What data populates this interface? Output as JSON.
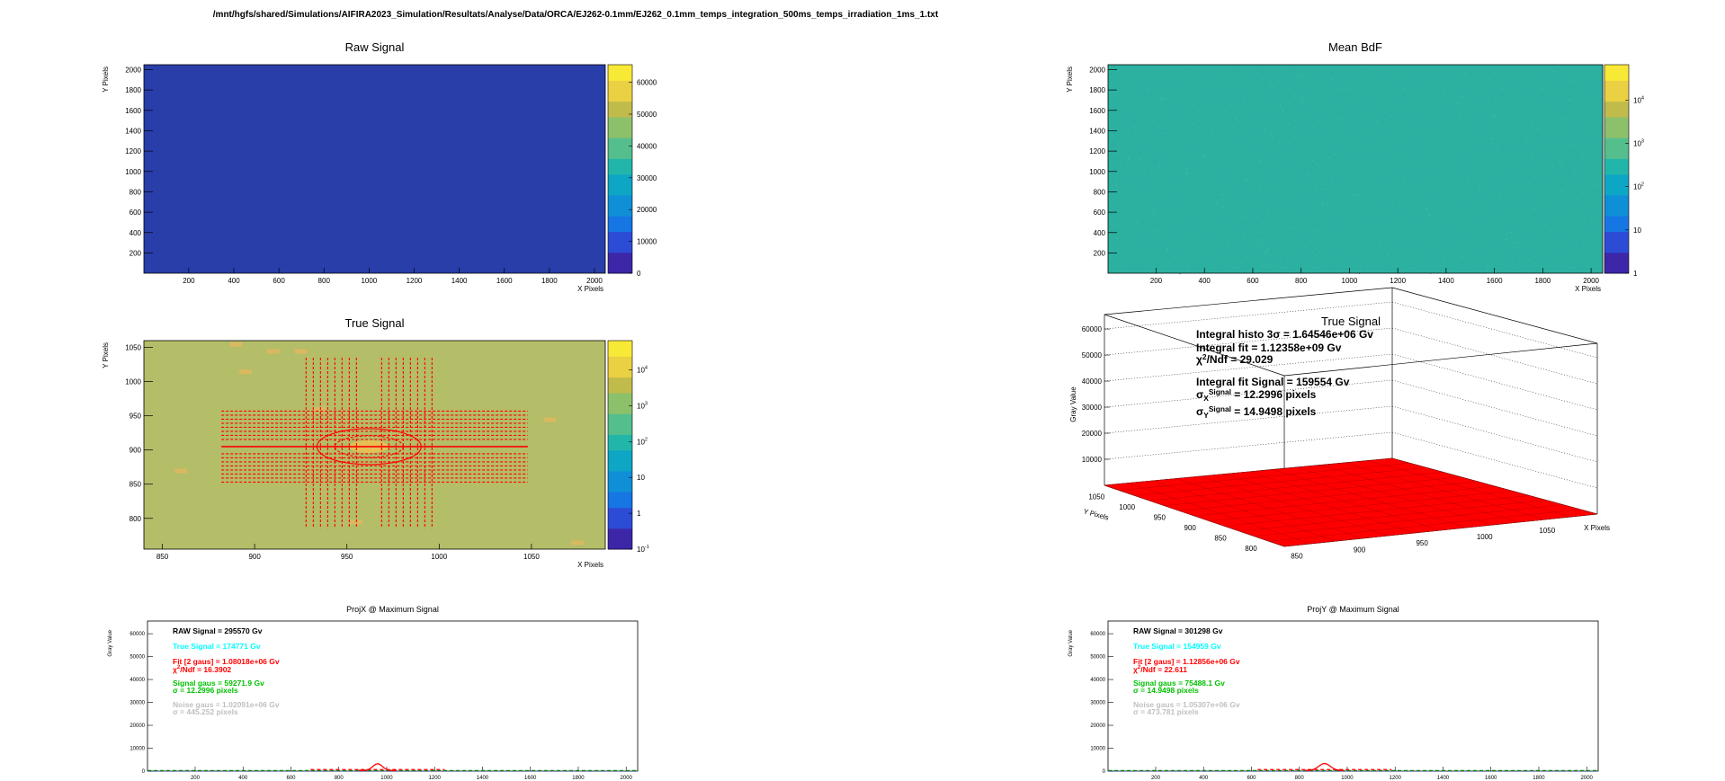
{
  "file_title": "/mnt/hgfs/shared/Simulations/AIFIRA2023_Simulation/Resultats/Analyse/Data/ORCA/EJ262-0.1mm/EJ262_0.1mm_temps_integration_500ms_temps_irradiation_1ms_1.txt",
  "colors": {
    "raw_fill": "#2a3eaa",
    "bdf_fill": "#2cb1a1",
    "true_fill": "#b4bd68",
    "contour": "#ff0000",
    "surface": "#ff0000",
    "true_signal_text": "#00ffff",
    "fit_text": "#ff0000",
    "gaus_text": "#00c000",
    "noise_text": "#c0c0c0"
  },
  "chart_data": [
    {
      "id": "raw_signal",
      "type": "heatmap",
      "title": "Raw Signal",
      "xlabel": "X Pixels",
      "ylabel": "Y Pixels",
      "xlim": [
        1,
        2048
      ],
      "ylim": [
        1,
        2048
      ],
      "x_ticks": [
        200,
        400,
        600,
        800,
        1000,
        1200,
        1400,
        1600,
        1800,
        2000
      ],
      "y_ticks": [
        200,
        400,
        600,
        800,
        1000,
        1200,
        1400,
        1600,
        1800,
        2000
      ],
      "z_scale": "linear",
      "z_range": [
        0,
        65535
      ],
      "z_ticks": [
        "0",
        "10000",
        "20000",
        "30000",
        "40000",
        "50000",
        "60000"
      ],
      "fill_value": "uniform low"
    },
    {
      "id": "mean_bdf",
      "type": "heatmap",
      "title": "Mean BdF",
      "xlabel": "X Pixels",
      "ylabel": "Y Pixels",
      "xlim": [
        1,
        2048
      ],
      "ylim": [
        1,
        2048
      ],
      "x_ticks": [
        200,
        400,
        600,
        800,
        1000,
        1200,
        1400,
        1600,
        1800,
        2000
      ],
      "y_ticks": [
        200,
        400,
        600,
        800,
        1000,
        1200,
        1400,
        1600,
        1800,
        2000
      ],
      "z_scale": "log",
      "z_range": [
        1,
        65535
      ],
      "z_ticks": [
        "1",
        "10",
        "10²",
        "10³",
        "10⁴"
      ],
      "fill_value": "noise ~ 10³"
    },
    {
      "id": "true_signal_2d",
      "type": "heatmap",
      "title": "True Signal",
      "xlabel": "X Pixels",
      "ylabel": "Y Pixels",
      "xlim": [
        840,
        1090
      ],
      "ylim": [
        755,
        1060
      ],
      "x_ticks": [
        850,
        900,
        950,
        1000,
        1050
      ],
      "y_ticks": [
        800,
        850,
        900,
        950,
        1000,
        1050
      ],
      "z_scale": "log",
      "z_range": [
        0.1,
        65535
      ],
      "z_ticks": [
        "10⁻¹",
        "1",
        "10",
        "10²",
        "10³",
        "10⁴"
      ],
      "peak": {
        "x": 962,
        "y": 905
      },
      "sigma": {
        "x": 12.2996,
        "y": 14.9498
      }
    },
    {
      "id": "true_signal_3d",
      "type": "surface",
      "title": "True Signal",
      "xlabel": "X Pixels",
      "ylabel": "Y Pixels",
      "zlabel": "Gray Value",
      "x_ticks": [
        850,
        900,
        950,
        1000,
        1050
      ],
      "y_ticks": [
        800,
        850,
        900,
        950,
        1000,
        1050
      ],
      "z_ticks": [
        10000,
        20000,
        30000,
        40000,
        50000,
        60000
      ],
      "zlim": [
        0,
        65535
      ],
      "stats": [
        "Integral histo 3σ = 1.64546e+06 Gv",
        "Integral fit = 1.12358e+09 Gv",
        "χ²/Ndf = 29.029",
        "Integral fit Signal = 159554 Gv",
        "σX^Signal = 12.2996 pixels",
        "σY^Signal = 14.9498 pixels"
      ]
    },
    {
      "id": "projx",
      "type": "line",
      "title": "ProjX @ Maximum Signal",
      "xlabel": "X Pixels",
      "ylabel": "Gray Value",
      "xlim": [
        1,
        2048
      ],
      "ylim": [
        0,
        65535
      ],
      "x_ticks": [
        200,
        400,
        600,
        800,
        1000,
        1200,
        1400,
        1600,
        1800,
        2000
      ],
      "y_ticks": [
        0,
        10000,
        20000,
        30000,
        40000,
        50000,
        60000
      ],
      "peak": {
        "center": 962,
        "height": 2900,
        "sigma": 12.2996
      },
      "baseline": 300,
      "stats": {
        "raw": "RAW Signal = 295570 Gv",
        "true": "True Signal = 174771 Gv",
        "fit": "Fit [2 gaus] = 1.08018e+06 Gv",
        "chi2": "χ²/Ndf = 16.3902",
        "gaus": "Signal gaus = 59271.9 Gv",
        "gaus_sigma": "σ = 12.2996 pixels",
        "noise": "Noise gaus = 1.02091e+06 Gv",
        "noise_sigma": "σ = 445.252 pixels"
      }
    },
    {
      "id": "projy",
      "type": "line",
      "title": "ProjY @ Maximum Signal",
      "xlabel": "Y Pixels",
      "ylabel": "Gray Value",
      "xlim": [
        1,
        2048
      ],
      "ylim": [
        0,
        65535
      ],
      "x_ticks": [
        200,
        400,
        600,
        800,
        1000,
        1200,
        1400,
        1600,
        1800,
        2000
      ],
      "y_ticks": [
        0,
        10000,
        20000,
        30000,
        40000,
        50000,
        60000
      ],
      "peak": {
        "center": 905,
        "height": 3000,
        "sigma": 14.9498
      },
      "baseline": 300,
      "stats": {
        "raw": "RAW Signal = 301298 Gv",
        "true": "True Signal = 154959 Gv",
        "fit": "Fit [2 gaus] = 1.12856e+06 Gv",
        "chi2": "χ²/Ndf = 22.611",
        "gaus": "Signal gaus = 75488.1 Gv",
        "gaus_sigma": "σ = 14.9498 pixels",
        "noise": "Noise gaus = 1.05307e+06 Gv",
        "noise_sigma": "σ = 473.781 pixels"
      }
    }
  ]
}
